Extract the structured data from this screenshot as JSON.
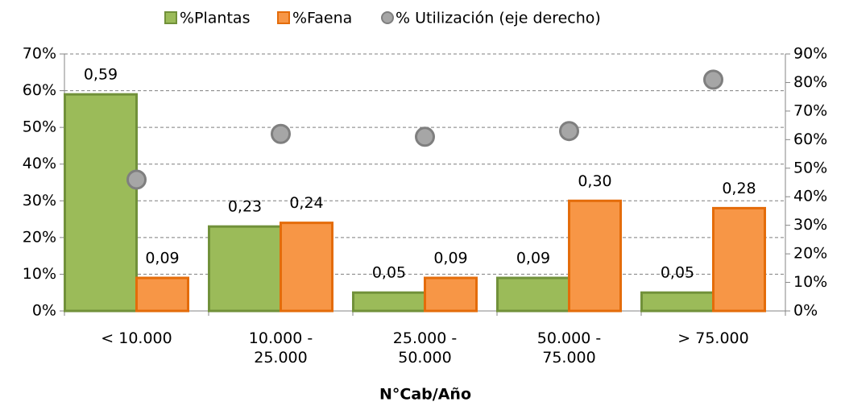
{
  "chart_data": {
    "type": "bar",
    "x_label": "N°Cab/Año",
    "categories": [
      "< 10.000",
      "10.000 -\n25.000",
      "25.000 -\n50.000",
      "50.000 -\n75.000",
      "> 75.000"
    ],
    "series": [
      {
        "name": "%Plantas",
        "color": "#9bbb59",
        "stroke": "#71913a",
        "values": [
          59,
          23,
          5,
          9,
          5
        ],
        "value_labels": [
          "0,59",
          "0,23",
          "0,05",
          "0,09",
          "0,05"
        ]
      },
      {
        "name": "%Faena",
        "color": "#f79646",
        "stroke": "#e46c0a",
        "values": [
          9,
          24,
          9,
          30,
          28
        ],
        "value_labels": [
          "0,09",
          "0,24",
          "0,09",
          "0,30",
          "0,28"
        ]
      },
      {
        "name": "% Utilización (eje derecho)",
        "type": "scatter",
        "axis": "y2",
        "color": "#a6a6a6",
        "stroke": "#7f7f7f",
        "values": [
          46,
          62,
          61,
          63,
          81
        ]
      }
    ],
    "ylim": [
      0,
      70
    ],
    "yticks": [
      {
        "value": 0,
        "label": "0%"
      },
      {
        "value": 10,
        "label": "10%"
      },
      {
        "value": 20,
        "label": "20%"
      },
      {
        "value": 30,
        "label": "30%"
      },
      {
        "value": 40,
        "label": "40%"
      },
      {
        "value": 50,
        "label": "50%"
      },
      {
        "value": 60,
        "label": "60%"
      },
      {
        "value": 70,
        "label": "70%"
      }
    ],
    "y2lim": [
      0,
      90
    ],
    "y2ticks": [
      {
        "value": 0,
        "label": "0%"
      },
      {
        "value": 10,
        "label": "10%"
      },
      {
        "value": 20,
        "label": "20%"
      },
      {
        "value": 30,
        "label": "30%"
      },
      {
        "value": 40,
        "label": "40%"
      },
      {
        "value": 50,
        "label": "50%"
      },
      {
        "value": 60,
        "label": "60%"
      },
      {
        "value": 70,
        "label": "70%"
      },
      {
        "value": 80,
        "label": "80%"
      },
      {
        "value": 90,
        "label": "90%"
      }
    ],
    "grid": true,
    "legend": "top"
  }
}
